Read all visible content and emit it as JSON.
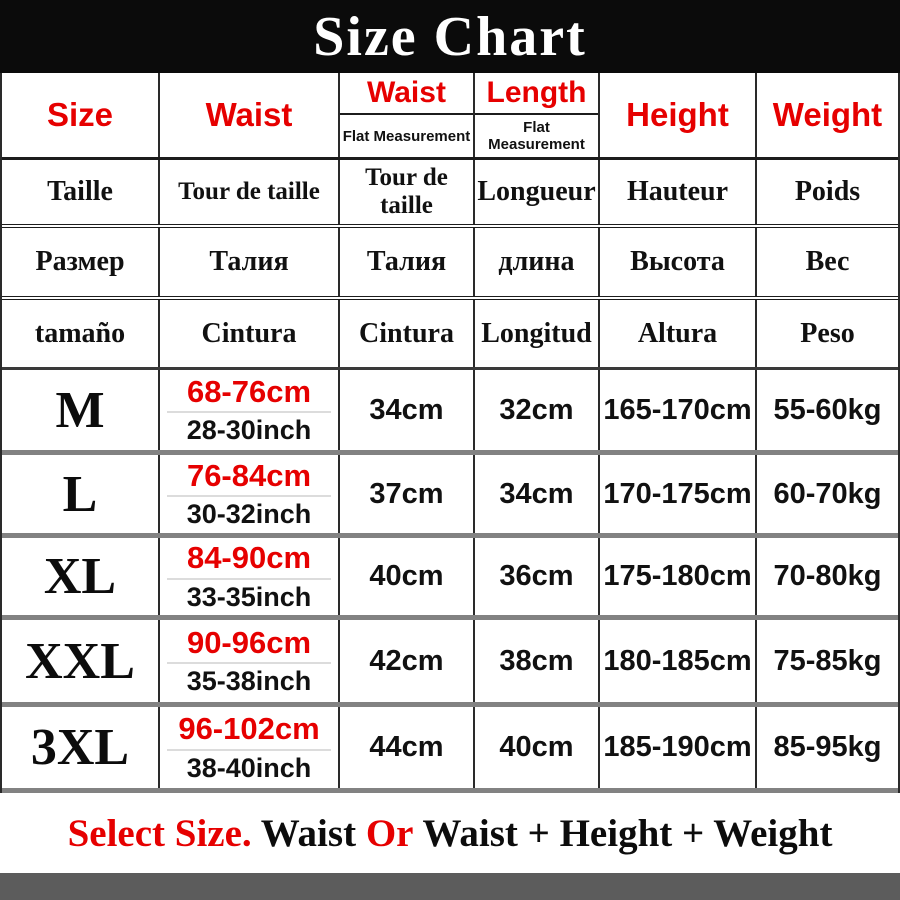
{
  "title": "Size Chart",
  "chart_data": {
    "type": "table",
    "title": "Size Chart",
    "columns": [
      "Size",
      "Waist",
      "Waist (Flat Measurement)",
      "Length (Flat Measurement)",
      "Height",
      "Weight"
    ],
    "header_translations": [
      {
        "lang": "French",
        "cells": [
          "Taille",
          "Tour de taille",
          "Tour de taille",
          "Longueur",
          "Hauteur",
          "Poids"
        ]
      },
      {
        "lang": "Russian",
        "cells": [
          "Размер",
          "Талия",
          "Талия",
          "длина",
          "Высота",
          "Вес"
        ]
      },
      {
        "lang": "Spanish",
        "cells": [
          "tamaño",
          "Cintura",
          "Cintura",
          "Longitud",
          "Altura",
          "Peso"
        ]
      }
    ],
    "rows": [
      [
        "M",
        "68-76cm / 28-30inch",
        "34cm",
        "32cm",
        "165-170cm",
        "55-60kg"
      ],
      [
        "L",
        "76-84cm / 30-32inch",
        "37cm",
        "34cm",
        "170-175cm",
        "60-70kg"
      ],
      [
        "XL",
        "84-90cm / 33-35inch",
        "40cm",
        "36cm",
        "175-180cm",
        "70-80kg"
      ],
      [
        "XXL",
        "90-96cm / 35-38inch",
        "42cm",
        "38cm",
        "180-185cm",
        "75-85kg"
      ],
      [
        "3XL",
        "96-102cm / 38-40inch",
        "44cm",
        "40cm",
        "185-190cm",
        "85-95kg"
      ]
    ],
    "footnote": "Select Size. Waist Or Waist + Height + Weight"
  },
  "header": {
    "col_size": "Size",
    "col_waist": "Waist",
    "col_waist_flat": "Waist",
    "col_waist_flat_sub": "Flat Measurement",
    "col_length": "Length",
    "col_length_sub": "Flat Measurement",
    "col_height": "Height",
    "col_weight": "Weight"
  },
  "french": [
    "Taille",
    "Tour de taille",
    "Tour de taille",
    "Longueur",
    "Hauteur",
    "Poids"
  ],
  "russian": [
    "Размер",
    "Талия",
    "Талия",
    "длина",
    "Высота",
    "Вес"
  ],
  "spanish": [
    "tamaño",
    "Cintura",
    "Cintura",
    "Longitud",
    "Altura",
    "Peso"
  ],
  "sizes": [
    {
      "size": "M",
      "waist_cm": "68-76cm",
      "waist_inch": "28-30inch",
      "waist_flat": "34cm",
      "length": "32cm",
      "height": "165-170cm",
      "weight": "55-60kg"
    },
    {
      "size": "L",
      "waist_cm": "76-84cm",
      "waist_inch": "30-32inch",
      "waist_flat": "37cm",
      "length": "34cm",
      "height": "170-175cm",
      "weight": "60-70kg"
    },
    {
      "size": "XL",
      "waist_cm": "84-90cm",
      "waist_inch": "33-35inch",
      "waist_flat": "40cm",
      "length": "36cm",
      "height": "175-180cm",
      "weight": "70-80kg"
    },
    {
      "size": "XXL",
      "waist_cm": "90-96cm",
      "waist_inch": "35-38inch",
      "waist_flat": "42cm",
      "length": "38cm",
      "height": "180-185cm",
      "weight": "75-85kg"
    },
    {
      "size": "3XL",
      "waist_cm": "96-102cm",
      "waist_inch": "38-40inch",
      "waist_flat": "44cm",
      "length": "40cm",
      "height": "185-190cm",
      "weight": "85-95kg"
    }
  ],
  "footer": {
    "select": "Select Size.",
    "mid1": " Waist ",
    "or": "Or",
    "rest": " Waist + Height + Weight"
  },
  "colors": {
    "accent_red": "#e60000",
    "banner_black": "#0b0b0b",
    "border_gray": "#828282",
    "bottom_bar_gray": "#5c5c5c"
  }
}
